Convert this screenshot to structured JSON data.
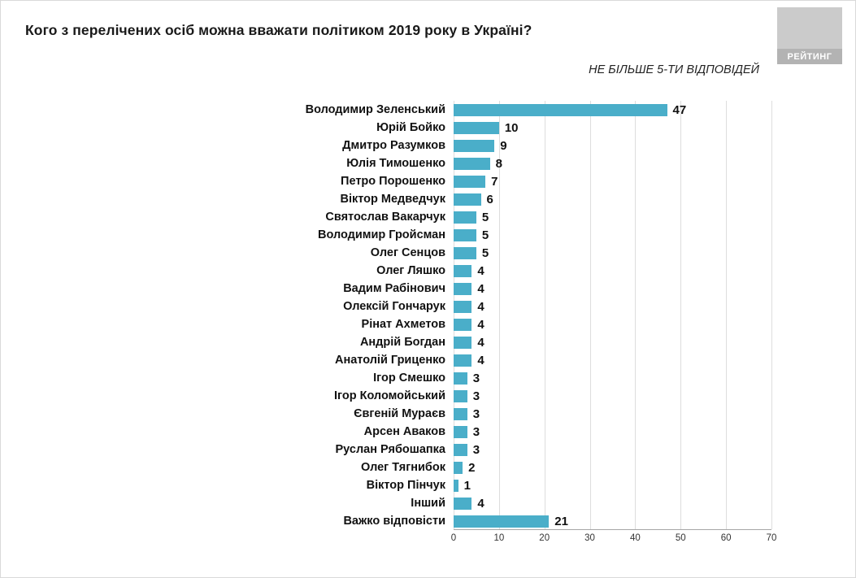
{
  "header": {
    "title": "Кого з перелічених осіб можна вважати політиком 2019 року в Україні?",
    "subtitle": "НЕ БІЛЬШЕ 5-ТИ ВІДПОВІДЕЙ",
    "logo_text": "РЕЙТИНГ"
  },
  "colors": {
    "bar": "#4aaec9",
    "grid": "#dddddd",
    "axis": "#a6a6a6",
    "logo_bg": "#cbcbcb",
    "logo_band": "#b3b3b3"
  },
  "chart_data": {
    "type": "bar",
    "orientation": "horizontal",
    "title": "Кого з перелічених осіб можна вважати політиком 2019 року в Україні?",
    "subtitle": "НЕ БІЛЬШЕ 5-ТИ ВІДПОВІДЕЙ",
    "categories": [
      "Володимир Зеленський",
      "Юрій Бойко",
      "Дмитро Разумков",
      "Юлія Тимошенко",
      "Петро Порошенко",
      "Віктор Медведчук",
      "Святослав Вакарчук",
      "Володимир Гройсман",
      "Олег Сенцов",
      "Олег Ляшко",
      "Вадим Рабінович",
      "Олексій Гончарук",
      "Рінат Ахметов",
      "Андрій Богдан",
      "Анатолій Гриценко",
      "Ігор Смешко",
      "Ігор Коломойський",
      "Євгеній Мураєв",
      "Арсен Аваков",
      "Руслан Рябошапка",
      "Олег Тягнибок",
      "Віктор Пінчук",
      "Інший",
      "Важко відповісти"
    ],
    "values": [
      47,
      10,
      9,
      8,
      7,
      6,
      5,
      5,
      5,
      4,
      4,
      4,
      4,
      4,
      4,
      3,
      3,
      3,
      3,
      3,
      2,
      1,
      4,
      21
    ],
    "xlim": [
      0,
      70
    ],
    "xticks": [
      0,
      10,
      20,
      30,
      40,
      50,
      60,
      70
    ],
    "grid": true,
    "legend": false
  }
}
